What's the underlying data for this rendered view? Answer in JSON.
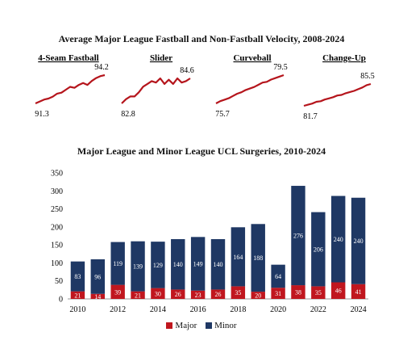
{
  "colors": {
    "major": "#c0161e",
    "minor": "#1f3864",
    "spark": "#b5151c",
    "grid": "#d9d9d9",
    "axis": "#999999"
  },
  "top_title": "Average Major League Fastball and Non-Fastball Velocity, 2008-2024",
  "bottom_title": "Major League and Minor League UCL Surgeries, 2010-2024",
  "legend": {
    "major": "Major",
    "minor": "Minor"
  },
  "chart_data": [
    {
      "type": "line",
      "title": "4-Seam Fastball",
      "x": [
        2008,
        2009,
        2010,
        2011,
        2012,
        2013,
        2014,
        2015,
        2016,
        2017,
        2018,
        2019,
        2020,
        2021,
        2022,
        2023,
        2024
      ],
      "values": [
        91.3,
        91.5,
        91.7,
        91.8,
        92.0,
        92.3,
        92.4,
        92.7,
        93.0,
        92.9,
        93.2,
        93.4,
        93.2,
        93.6,
        93.9,
        94.1,
        94.2
      ],
      "start_label": "91.3",
      "end_label": "94.2"
    },
    {
      "type": "line",
      "title": "Slider",
      "x": [
        2008,
        2009,
        2010,
        2011,
        2012,
        2013,
        2014,
        2015,
        2016,
        2017,
        2018,
        2019,
        2020,
        2021,
        2022,
        2023,
        2024
      ],
      "values": [
        82.8,
        83.1,
        83.3,
        83.3,
        83.6,
        84.0,
        84.2,
        84.4,
        84.3,
        84.6,
        84.2,
        84.5,
        84.2,
        84.6,
        84.3,
        84.4,
        84.6
      ],
      "start_label": "82.8",
      "end_label": "84.6"
    },
    {
      "type": "line",
      "title": "Curveball",
      "x": [
        2008,
        2009,
        2010,
        2011,
        2012,
        2013,
        2014,
        2015,
        2016,
        2017,
        2018,
        2019,
        2020,
        2021,
        2022,
        2023,
        2024
      ],
      "values": [
        75.7,
        76.0,
        76.2,
        76.4,
        76.7,
        77.0,
        77.2,
        77.5,
        77.7,
        77.9,
        78.2,
        78.5,
        78.6,
        78.9,
        79.1,
        79.3,
        79.5
      ],
      "start_label": "75.7",
      "end_label": "79.5"
    },
    {
      "type": "line",
      "title": "Change-Up",
      "x": [
        2008,
        2009,
        2010,
        2011,
        2012,
        2013,
        2014,
        2015,
        2016,
        2017,
        2018,
        2019,
        2020,
        2021,
        2022,
        2023,
        2024
      ],
      "values": [
        81.7,
        81.9,
        82.1,
        82.4,
        82.5,
        82.8,
        83.0,
        83.2,
        83.5,
        83.6,
        83.9,
        84.1,
        84.3,
        84.6,
        84.9,
        85.3,
        85.5
      ],
      "start_label": "81.7",
      "end_label": "85.5"
    },
    {
      "type": "bar",
      "stacked": true,
      "categories": [
        2010,
        2011,
        2012,
        2013,
        2014,
        2015,
        2016,
        2017,
        2018,
        2019,
        2020,
        2021,
        2022,
        2023,
        2024
      ],
      "series": [
        {
          "name": "Major",
          "values": [
            21,
            14,
            39,
            21,
            30,
            26,
            23,
            26,
            35,
            20,
            31,
            38,
            35,
            46,
            41
          ]
        },
        {
          "name": "Minor",
          "values": [
            83,
            96,
            119,
            139,
            129,
            140,
            149,
            140,
            164,
            188,
            64,
            276,
            206,
            240,
            240
          ]
        }
      ],
      "ylim": [
        0,
        350
      ],
      "yticks": [
        0,
        50,
        100,
        150,
        200,
        250,
        300,
        350
      ],
      "xticks": [
        2010,
        2012,
        2014,
        2016,
        2018,
        2020,
        2022,
        2024
      ],
      "grid": false
    }
  ]
}
